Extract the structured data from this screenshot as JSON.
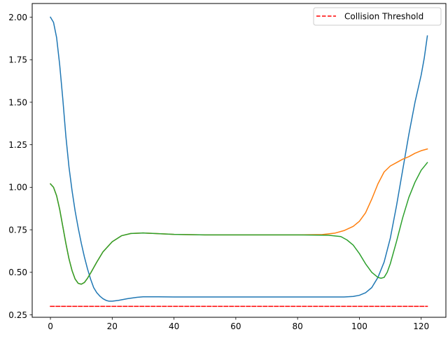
{
  "chart_data": {
    "type": "line",
    "title": "",
    "xlabel": "",
    "ylabel": "",
    "xlim": [
      -5.9,
      128
    ],
    "ylim": [
      0.2355,
      2.0805
    ],
    "xticks": [
      0,
      20,
      40,
      60,
      80,
      100,
      120
    ],
    "yticks": [
      0.25,
      0.5,
      0.75,
      1.0,
      1.25,
      1.5,
      1.75,
      2.0
    ],
    "ytick_labels": [
      "0.25",
      "0.50",
      "0.75",
      "1.00",
      "1.25",
      "1.50",
      "1.75",
      "2.00"
    ],
    "legend": {
      "position": "top-right",
      "entries": [
        "Collision Threshold"
      ]
    },
    "grid": false,
    "series": [
      {
        "color": "#1f77b4",
        "points": [
          [
            0,
            2.0
          ],
          [
            1,
            1.97
          ],
          [
            2,
            1.88
          ],
          [
            3,
            1.72
          ],
          [
            4,
            1.52
          ],
          [
            5,
            1.3
          ],
          [
            6,
            1.12
          ],
          [
            7,
            0.98
          ],
          [
            8,
            0.86
          ],
          [
            9,
            0.76
          ],
          [
            10,
            0.67
          ],
          [
            11,
            0.59
          ],
          [
            12,
            0.52
          ],
          [
            13,
            0.46
          ],
          [
            14,
            0.41
          ],
          [
            15,
            0.38
          ],
          [
            16,
            0.36
          ],
          [
            17,
            0.345
          ],
          [
            18,
            0.335
          ],
          [
            19,
            0.33
          ],
          [
            20,
            0.33
          ],
          [
            22,
            0.335
          ],
          [
            25,
            0.345
          ],
          [
            28,
            0.353
          ],
          [
            30,
            0.356
          ],
          [
            35,
            0.356
          ],
          [
            40,
            0.355
          ],
          [
            60,
            0.355
          ],
          [
            80,
            0.355
          ],
          [
            95,
            0.355
          ],
          [
            98,
            0.358
          ],
          [
            100,
            0.365
          ],
          [
            102,
            0.38
          ],
          [
            104,
            0.41
          ],
          [
            106,
            0.47
          ],
          [
            108,
            0.56
          ],
          [
            110,
            0.7
          ],
          [
            112,
            0.89
          ],
          [
            114,
            1.1
          ],
          [
            116,
            1.31
          ],
          [
            118,
            1.5
          ],
          [
            120,
            1.66
          ],
          [
            121,
            1.76
          ],
          [
            122,
            1.89
          ]
        ]
      },
      {
        "color": "#ff7f0e",
        "points": [
          [
            0,
            1.02
          ],
          [
            1,
            1.0
          ],
          [
            2,
            0.95
          ],
          [
            3,
            0.87
          ],
          [
            4,
            0.77
          ],
          [
            5,
            0.67
          ],
          [
            6,
            0.58
          ],
          [
            7,
            0.51
          ],
          [
            8,
            0.46
          ],
          [
            9,
            0.435
          ],
          [
            10,
            0.43
          ],
          [
            11,
            0.44
          ],
          [
            12,
            0.465
          ],
          [
            13,
            0.495
          ],
          [
            15,
            0.56
          ],
          [
            17,
            0.62
          ],
          [
            20,
            0.68
          ],
          [
            23,
            0.715
          ],
          [
            26,
            0.728
          ],
          [
            30,
            0.731
          ],
          [
            35,
            0.727
          ],
          [
            40,
            0.723
          ],
          [
            50,
            0.72
          ],
          [
            60,
            0.72
          ],
          [
            70,
            0.72
          ],
          [
            80,
            0.72
          ],
          [
            88,
            0.722
          ],
          [
            92,
            0.73
          ],
          [
            95,
            0.745
          ],
          [
            98,
            0.77
          ],
          [
            100,
            0.8
          ],
          [
            102,
            0.85
          ],
          [
            104,
            0.93
          ],
          [
            106,
            1.02
          ],
          [
            108,
            1.09
          ],
          [
            110,
            1.125
          ],
          [
            112,
            1.145
          ],
          [
            114,
            1.165
          ],
          [
            116,
            1.18
          ],
          [
            118,
            1.2
          ],
          [
            120,
            1.215
          ],
          [
            122,
            1.225
          ]
        ]
      },
      {
        "color": "#2ca02c",
        "points": [
          [
            0,
            1.02
          ],
          [
            1,
            1.0
          ],
          [
            2,
            0.95
          ],
          [
            3,
            0.87
          ],
          [
            4,
            0.77
          ],
          [
            5,
            0.67
          ],
          [
            6,
            0.58
          ],
          [
            7,
            0.51
          ],
          [
            8,
            0.46
          ],
          [
            9,
            0.435
          ],
          [
            10,
            0.43
          ],
          [
            11,
            0.44
          ],
          [
            12,
            0.465
          ],
          [
            13,
            0.495
          ],
          [
            15,
            0.56
          ],
          [
            17,
            0.62
          ],
          [
            20,
            0.68
          ],
          [
            23,
            0.715
          ],
          [
            26,
            0.728
          ],
          [
            30,
            0.731
          ],
          [
            35,
            0.727
          ],
          [
            40,
            0.723
          ],
          [
            50,
            0.72
          ],
          [
            60,
            0.72
          ],
          [
            70,
            0.72
          ],
          [
            80,
            0.72
          ],
          [
            90,
            0.718
          ],
          [
            94,
            0.71
          ],
          [
            96,
            0.69
          ],
          [
            98,
            0.66
          ],
          [
            100,
            0.61
          ],
          [
            102,
            0.55
          ],
          [
            104,
            0.5
          ],
          [
            106,
            0.47
          ],
          [
            107,
            0.465
          ],
          [
            108,
            0.47
          ],
          [
            109,
            0.5
          ],
          [
            110,
            0.55
          ],
          [
            112,
            0.68
          ],
          [
            114,
            0.82
          ],
          [
            116,
            0.94
          ],
          [
            118,
            1.03
          ],
          [
            120,
            1.1
          ],
          [
            122,
            1.145
          ]
        ]
      },
      {
        "name": "Collision Threshold",
        "color": "#ff0000",
        "style": "dashed",
        "points": [
          [
            0,
            0.3
          ],
          [
            122,
            0.3
          ]
        ]
      }
    ]
  }
}
